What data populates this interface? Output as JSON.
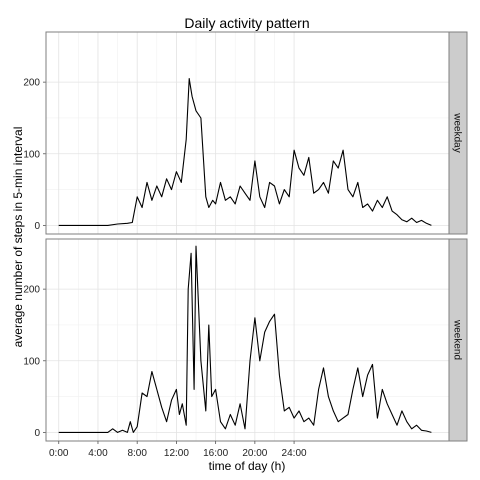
{
  "chart_data": {
    "type": "line",
    "title": "Daily activity pattern",
    "xlabel": "time of day (h)",
    "ylabel": "average number of steps in 5-min interval",
    "x_ticks": [
      {
        "value": 0,
        "label": "0:00"
      },
      {
        "value": 4,
        "label": "4:00"
      },
      {
        "value": 8,
        "label": "8:00"
      },
      {
        "value": 12,
        "label": "12:00"
      },
      {
        "value": 16,
        "label": "16:00"
      },
      {
        "value": 20,
        "label": "20:00"
      },
      {
        "value": 24,
        "label": "24:00"
      }
    ],
    "xlim": [
      -1.3,
      39.8
    ],
    "grid": true,
    "colors": {
      "line": "#000000",
      "strip": "#cccccc",
      "grid": "#e3e3e3",
      "border": "#7f7f7f"
    },
    "panels": [
      {
        "strip": "weekday",
        "ylim": [
          -12,
          270
        ],
        "y_ticks": [
          0,
          100,
          200
        ],
        "series": [
          {
            "x": [
              0.0,
              1.0,
              2.0,
              3.0,
              4.0,
              5.0,
              6.0,
              7.0,
              7.5,
              8.0,
              8.5,
              9.0,
              9.5,
              10.0,
              10.5,
              11.0,
              11.5,
              12.0,
              12.5,
              13.0,
              13.3,
              13.6,
              14.0,
              14.5,
              15.0,
              15.3,
              15.7,
              16.0,
              16.5,
              17.0,
              17.5,
              18.0,
              18.5,
              19.0,
              19.5,
              20.0,
              20.5,
              21.0,
              21.5,
              22.0,
              22.5,
              23.0,
              23.5,
              24.0,
              24.5,
              25.0,
              25.5,
              26.0,
              26.5,
              27.0,
              27.5,
              28.0,
              28.5,
              29.0,
              29.5,
              30.0,
              30.5,
              31.0,
              31.5,
              32.0,
              32.5,
              33.0,
              33.5,
              34.0,
              34.5,
              35.0,
              35.5,
              36.0,
              36.5,
              37.0,
              37.5,
              38.0
            ],
            "y": [
              0,
              0,
              0,
              0,
              0,
              0,
              2,
              3,
              4,
              40,
              25,
              60,
              35,
              55,
              40,
              65,
              50,
              75,
              60,
              120,
              205,
              180,
              160,
              150,
              40,
              25,
              35,
              30,
              60,
              35,
              40,
              30,
              55,
              45,
              35,
              90,
              40,
              25,
              60,
              55,
              30,
              50,
              40,
              105,
              80,
              70,
              95,
              45,
              50,
              60,
              45,
              90,
              80,
              105,
              50,
              40,
              60,
              25,
              30,
              20,
              35,
              25,
              40,
              20,
              15,
              8,
              5,
              10,
              4,
              7,
              3,
              0
            ]
          }
        ]
      },
      {
        "strip": "weekend",
        "ylim": [
          -12,
          270
        ],
        "y_ticks": [
          0,
          100,
          200
        ],
        "series": [
          {
            "x": [
              0.0,
              1.0,
              2.0,
              3.0,
              4.0,
              5.0,
              5.5,
              6.0,
              6.5,
              7.0,
              7.3,
              7.6,
              8.0,
              8.5,
              9.0,
              9.5,
              10.0,
              10.5,
              11.0,
              11.5,
              12.0,
              12.3,
              12.6,
              13.0,
              13.2,
              13.5,
              13.8,
              14.0,
              14.5,
              15.0,
              15.3,
              15.6,
              16.0,
              16.5,
              17.0,
              17.5,
              18.0,
              18.5,
              19.0,
              19.5,
              20.0,
              20.5,
              21.0,
              21.5,
              22.0,
              22.5,
              23.0,
              23.5,
              24.0,
              24.5,
              25.0,
              25.5,
              26.0,
              26.5,
              27.0,
              27.5,
              28.0,
              28.5,
              29.0,
              29.5,
              30.0,
              30.5,
              31.0,
              31.5,
              32.0,
              32.5,
              33.0,
              33.5,
              34.0,
              34.5,
              35.0,
              35.5,
              36.0,
              36.5,
              37.0,
              37.5,
              38.0
            ],
            "y": [
              0,
              0,
              0,
              0,
              0,
              0,
              5,
              0,
              3,
              0,
              15,
              0,
              8,
              55,
              50,
              85,
              60,
              35,
              15,
              45,
              60,
              25,
              40,
              10,
              200,
              250,
              60,
              260,
              100,
              30,
              150,
              50,
              60,
              15,
              5,
              25,
              10,
              40,
              5,
              100,
              160,
              100,
              140,
              155,
              165,
              80,
              30,
              35,
              20,
              30,
              15,
              20,
              10,
              60,
              90,
              50,
              30,
              15,
              20,
              25,
              60,
              90,
              50,
              80,
              95,
              20,
              60,
              40,
              25,
              10,
              30,
              15,
              5,
              10,
              3,
              2,
              0
            ]
          }
        ]
      }
    ]
  }
}
